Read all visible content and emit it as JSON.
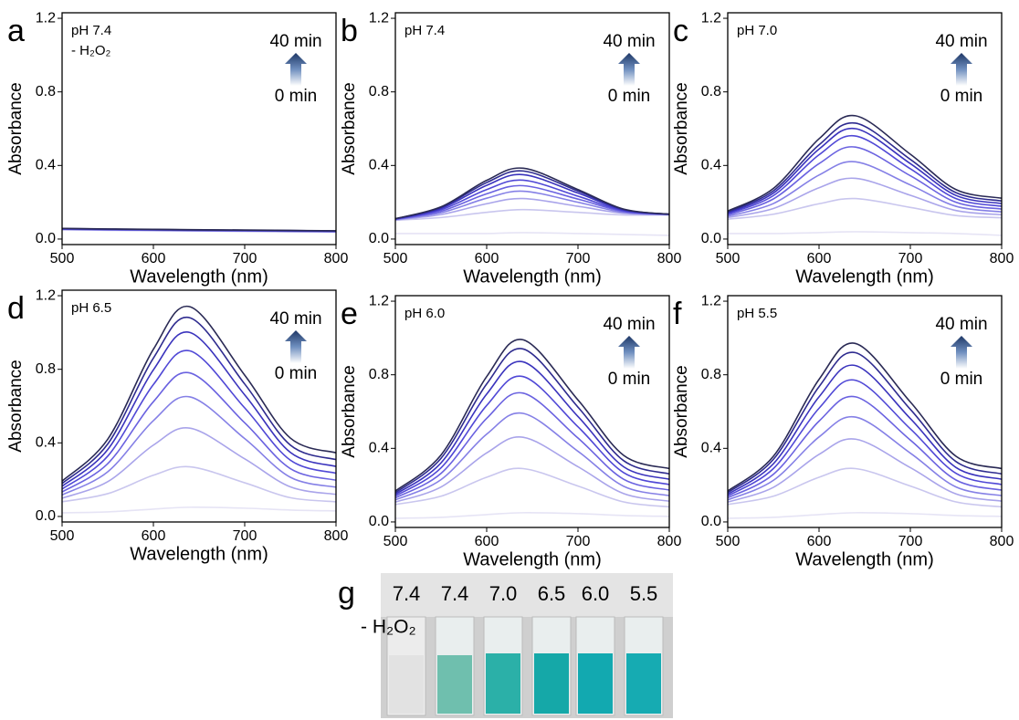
{
  "chart_data": [
    {
      "type": "line",
      "panel": "a",
      "annotation": [
        "pH 7.4",
        "- H₂O₂"
      ],
      "arrow_top": "40 min",
      "arrow_bottom": "0 min",
      "xlabel": "Wavelength (nm)",
      "ylabel": "Absorbance",
      "x": [
        500,
        550,
        600,
        640,
        700,
        750,
        800
      ],
      "xlim": [
        500,
        800
      ],
      "xticks": [
        500,
        600,
        700,
        800
      ],
      "ylim": [
        -0.03,
        1.23
      ],
      "yticks": [
        {
          "value": 0,
          "label": "0.0"
        },
        {
          "value": 0.4,
          "label": "0.4"
        },
        {
          "value": 0.8,
          "label": "0.8"
        },
        {
          "value": 1.2,
          "label": "1.2"
        }
      ],
      "series": [
        {
          "color": "#e6e4f5",
          "values": [
            0.05,
            0.047,
            0.045,
            0.043,
            0.041,
            0.039,
            0.037
          ]
        },
        {
          "color": "#c9c6ee",
          "values": [
            0.051,
            0.048,
            0.046,
            0.044,
            0.042,
            0.04,
            0.038
          ]
        },
        {
          "color": "#a9a4ea",
          "values": [
            0.052,
            0.049,
            0.047,
            0.045,
            0.043,
            0.041,
            0.039
          ]
        },
        {
          "color": "#8580e6",
          "values": [
            0.053,
            0.05,
            0.048,
            0.046,
            0.044,
            0.042,
            0.04
          ]
        },
        {
          "color": "#6a62e0",
          "values": [
            0.054,
            0.051,
            0.049,
            0.047,
            0.045,
            0.043,
            0.041
          ]
        },
        {
          "color": "#5048d6",
          "values": [
            0.055,
            0.052,
            0.05,
            0.048,
            0.046,
            0.044,
            0.042
          ]
        },
        {
          "color": "#3a33bd",
          "values": [
            0.056,
            0.053,
            0.051,
            0.049,
            0.047,
            0.045,
            0.043
          ]
        },
        {
          "color": "#2e2b8f",
          "values": [
            0.057,
            0.054,
            0.052,
            0.05,
            0.048,
            0.046,
            0.044
          ]
        },
        {
          "color": "#2a2a55",
          "values": [
            0.058,
            0.055,
            0.053,
            0.051,
            0.049,
            0.047,
            0.045
          ]
        }
      ]
    },
    {
      "type": "line",
      "panel": "b",
      "annotation": [
        "pH 7.4"
      ],
      "arrow_top": "40 min",
      "arrow_bottom": "0 min",
      "xlabel": "Wavelength (nm)",
      "ylabel": "Absorbance",
      "x": [
        500,
        550,
        600,
        640,
        700,
        750,
        800
      ],
      "xlim": [
        500,
        800
      ],
      "xticks": [
        500,
        600,
        700,
        800
      ],
      "ylim": [
        -0.03,
        1.23
      ],
      "yticks": [
        {
          "value": 0,
          "label": "0.0"
        },
        {
          "value": 0.4,
          "label": "0.4"
        },
        {
          "value": 0.8,
          "label": "0.8"
        },
        {
          "value": 1.2,
          "label": "1.2"
        }
      ],
      "series": [
        {
          "color": "#e6e4f5",
          "values": [
            0.03,
            0.03,
            0.03,
            0.035,
            0.03,
            0.025,
            0.02
          ]
        },
        {
          "color": "#c9c6ee",
          "values": [
            0.102,
            0.117,
            0.145,
            0.16,
            0.145,
            0.131,
            0.131
          ]
        },
        {
          "color": "#a9a4ea",
          "values": [
            0.104,
            0.133,
            0.192,
            0.22,
            0.178,
            0.14,
            0.132
          ]
        },
        {
          "color": "#8580e6",
          "values": [
            0.106,
            0.143,
            0.222,
            0.26,
            0.2,
            0.145,
            0.133
          ]
        },
        {
          "color": "#6a62e0",
          "values": [
            0.107,
            0.151,
            0.246,
            0.29,
            0.217,
            0.15,
            0.134
          ]
        },
        {
          "color": "#5048d6",
          "values": [
            0.108,
            0.159,
            0.269,
            0.32,
            0.233,
            0.154,
            0.134
          ]
        },
        {
          "color": "#3a33bd",
          "values": [
            0.109,
            0.166,
            0.292,
            0.35,
            0.25,
            0.158,
            0.135
          ]
        },
        {
          "color": "#2e2b8f",
          "values": [
            0.11,
            0.172,
            0.307,
            0.37,
            0.261,
            0.161,
            0.135
          ]
        },
        {
          "color": "#2a2a55",
          "values": [
            0.111,
            0.175,
            0.319,
            0.385,
            0.269,
            0.163,
            0.135
          ]
        }
      ]
    },
    {
      "type": "line",
      "panel": "c",
      "annotation": [
        "pH 7.0"
      ],
      "arrow_top": "40 min",
      "arrow_bottom": "0 min",
      "xlabel": "Wavelength (nm)",
      "ylabel": "Absorbance",
      "x": [
        500,
        550,
        600,
        640,
        700,
        750,
        800
      ],
      "xlim": [
        500,
        800
      ],
      "xticks": [
        500,
        600,
        700,
        800
      ],
      "ylim": [
        -0.03,
        1.23
      ],
      "yticks": [
        {
          "value": 0,
          "label": "0.0"
        },
        {
          "value": 0.4,
          "label": "0.4"
        },
        {
          "value": 0.8,
          "label": "0.8"
        },
        {
          "value": 1.2,
          "label": "1.2"
        }
      ],
      "series": [
        {
          "color": "#e6e4f5",
          "values": [
            0.03,
            0.03,
            0.035,
            0.04,
            0.035,
            0.03,
            0.02
          ]
        },
        {
          "color": "#c9c6ee",
          "values": [
            0.108,
            0.135,
            0.192,
            0.22,
            0.172,
            0.128,
            0.116
          ]
        },
        {
          "color": "#a9a4ea",
          "values": [
            0.117,
            0.166,
            0.279,
            0.33,
            0.238,
            0.155,
            0.132
          ]
        },
        {
          "color": "#8580e6",
          "values": [
            0.124,
            0.193,
            0.348,
            0.42,
            0.294,
            0.178,
            0.148
          ]
        },
        {
          "color": "#6a62e0",
          "values": [
            0.131,
            0.218,
            0.41,
            0.5,
            0.344,
            0.2,
            0.163
          ]
        },
        {
          "color": "#5048d6",
          "values": [
            0.137,
            0.236,
            0.458,
            0.56,
            0.382,
            0.22,
            0.178
          ]
        },
        {
          "color": "#3a33bd",
          "values": [
            0.142,
            0.25,
            0.489,
            0.6,
            0.41,
            0.237,
            0.193
          ]
        },
        {
          "color": "#2e2b8f",
          "values": [
            0.147,
            0.262,
            0.512,
            0.63,
            0.433,
            0.252,
            0.207
          ]
        },
        {
          "color": "#2a2a55",
          "values": [
            0.152,
            0.275,
            0.545,
            0.67,
            0.461,
            0.269,
            0.222
          ]
        }
      ]
    },
    {
      "type": "line",
      "panel": "d",
      "annotation": [
        "pH 6.5"
      ],
      "arrow_top": "40 min",
      "arrow_bottom": "0 min",
      "xlabel": "Wavelength (nm)",
      "ylabel": "Absorbance",
      "x": [
        500,
        550,
        600,
        640,
        700,
        750,
        800
      ],
      "xlim": [
        500,
        800
      ],
      "xticks": [
        500,
        600,
        700,
        800
      ],
      "ylim": [
        -0.03,
        1.23
      ],
      "yticks": [
        {
          "value": 0,
          "label": "0.0"
        },
        {
          "value": 0.4,
          "label": "0.4"
        },
        {
          "value": 0.8,
          "label": "0.8"
        },
        {
          "value": 1.2,
          "label": "1.2"
        }
      ],
      "series": [
        {
          "color": "#e6e4f5",
          "values": [
            0.02,
            0.025,
            0.04,
            0.05,
            0.045,
            0.035,
            0.03
          ]
        },
        {
          "color": "#c9c6ee",
          "values": [
            0.08,
            0.124,
            0.224,
            0.27,
            0.183,
            0.102,
            0.08
          ]
        },
        {
          "color": "#a9a4ea",
          "values": [
            0.099,
            0.189,
            0.388,
            0.48,
            0.313,
            0.161,
            0.12
          ]
        },
        {
          "color": "#8580e6",
          "values": [
            0.117,
            0.243,
            0.521,
            0.65,
            0.423,
            0.213,
            0.159
          ]
        },
        {
          "color": "#6a62e0",
          "values": [
            0.133,
            0.287,
            0.624,
            0.78,
            0.509,
            0.26,
            0.197
          ]
        },
        {
          "color": "#5048d6",
          "values": [
            0.149,
            0.328,
            0.717,
            0.9,
            0.59,
            0.306,
            0.235
          ]
        },
        {
          "color": "#3a33bd",
          "values": [
            0.164,
            0.364,
            0.797,
            1.0,
            0.661,
            0.348,
            0.272
          ]
        },
        {
          "color": "#2e2b8f",
          "values": [
            0.179,
            0.394,
            0.861,
            1.08,
            0.72,
            0.388,
            0.309
          ]
        },
        {
          "color": "#2a2a55",
          "values": [
            0.192,
            0.42,
            0.909,
            1.14,
            0.768,
            0.426,
            0.346
          ]
        }
      ]
    },
    {
      "type": "line",
      "panel": "e",
      "annotation": [
        "pH 6.0"
      ],
      "arrow_top": "40 min",
      "arrow_bottom": "0 min",
      "xlabel": "Wavelength (nm)",
      "ylabel": "Absorbance",
      "x": [
        500,
        550,
        600,
        640,
        700,
        750,
        800
      ],
      "xlim": [
        500,
        800
      ],
      "xticks": [
        500,
        600,
        700,
        800
      ],
      "ylim": [
        -0.03,
        1.23
      ],
      "yticks": [
        {
          "value": 0,
          "label": "0.0"
        },
        {
          "value": 0.4,
          "label": "0.4"
        },
        {
          "value": 0.8,
          "label": "0.8"
        },
        {
          "value": 1.2,
          "label": "1.2"
        }
      ],
      "series": [
        {
          "color": "#e6e4f5",
          "values": [
            0.02,
            0.025,
            0.04,
            0.05,
            0.045,
            0.035,
            0.03
          ]
        },
        {
          "color": "#c9c6ee",
          "values": [
            0.095,
            0.14,
            0.243,
            0.29,
            0.195,
            0.109,
            0.082
          ]
        },
        {
          "color": "#a9a4ea",
          "values": [
            0.108,
            0.19,
            0.375,
            0.46,
            0.3,
            0.154,
            0.113
          ]
        },
        {
          "color": "#8580e6",
          "values": [
            0.12,
            0.23,
            0.477,
            0.59,
            0.384,
            0.194,
            0.143
          ]
        },
        {
          "color": "#6a62e0",
          "values": [
            0.131,
            0.264,
            0.563,
            0.7,
            0.456,
            0.232,
            0.173
          ]
        },
        {
          "color": "#5048d6",
          "values": [
            0.141,
            0.294,
            0.633,
            0.79,
            0.517,
            0.268,
            0.203
          ]
        },
        {
          "color": "#3a33bd",
          "values": [
            0.15,
            0.321,
            0.695,
            0.87,
            0.573,
            0.3,
            0.232
          ]
        },
        {
          "color": "#2e2b8f",
          "values": [
            0.159,
            0.346,
            0.75,
            0.94,
            0.624,
            0.333,
            0.261
          ]
        },
        {
          "color": "#2a2a55",
          "values": [
            0.168,
            0.364,
            0.79,
            0.99,
            0.663,
            0.362,
            0.29
          ]
        }
      ]
    },
    {
      "type": "line",
      "panel": "f",
      "annotation": [
        "pH 5.5"
      ],
      "arrow_top": "40 min",
      "arrow_bottom": "0 min",
      "xlabel": "Wavelength (nm)",
      "ylabel": "Absorbance",
      "x": [
        500,
        550,
        600,
        640,
        700,
        750,
        800
      ],
      "xlim": [
        500,
        800
      ],
      "xticks": [
        500,
        600,
        700,
        800
      ],
      "ylim": [
        -0.03,
        1.23
      ],
      "yticks": [
        {
          "value": 0,
          "label": "0.0"
        },
        {
          "value": 0.4,
          "label": "0.4"
        },
        {
          "value": 0.8,
          "label": "0.8"
        },
        {
          "value": 1.2,
          "label": "1.2"
        }
      ],
      "series": [
        {
          "color": "#e6e4f5",
          "values": [
            0.02,
            0.025,
            0.04,
            0.05,
            0.045,
            0.035,
            0.03
          ]
        },
        {
          "color": "#c9c6ee",
          "values": [
            0.095,
            0.14,
            0.243,
            0.29,
            0.195,
            0.109,
            0.082
          ]
        },
        {
          "color": "#a9a4ea",
          "values": [
            0.108,
            0.188,
            0.367,
            0.45,
            0.295,
            0.152,
            0.113
          ]
        },
        {
          "color": "#8580e6",
          "values": [
            0.12,
            0.226,
            0.462,
            0.57,
            0.374,
            0.19,
            0.143
          ]
        },
        {
          "color": "#6a62e0",
          "values": [
            0.131,
            0.259,
            0.548,
            0.68,
            0.445,
            0.228,
            0.173
          ]
        },
        {
          "color": "#5048d6",
          "values": [
            0.141,
            0.29,
            0.618,
            0.77,
            0.506,
            0.264,
            0.203
          ]
        },
        {
          "color": "#3a33bd",
          "values": [
            0.15,
            0.316,
            0.68,
            0.85,
            0.562,
            0.296,
            0.232
          ]
        },
        {
          "color": "#2e2b8f",
          "values": [
            0.159,
            0.34,
            0.735,
            0.92,
            0.612,
            0.328,
            0.261
          ]
        },
        {
          "color": "#2a2a55",
          "values": [
            0.168,
            0.357,
            0.775,
            0.97,
            0.652,
            0.357,
            0.29
          ]
        }
      ]
    }
  ],
  "photo": {
    "panel": "g",
    "samples": [
      "7.4",
      "7.4",
      "7.0",
      "6.5",
      "6.0",
      "5.5"
    ],
    "note": "- H₂O₂"
  }
}
